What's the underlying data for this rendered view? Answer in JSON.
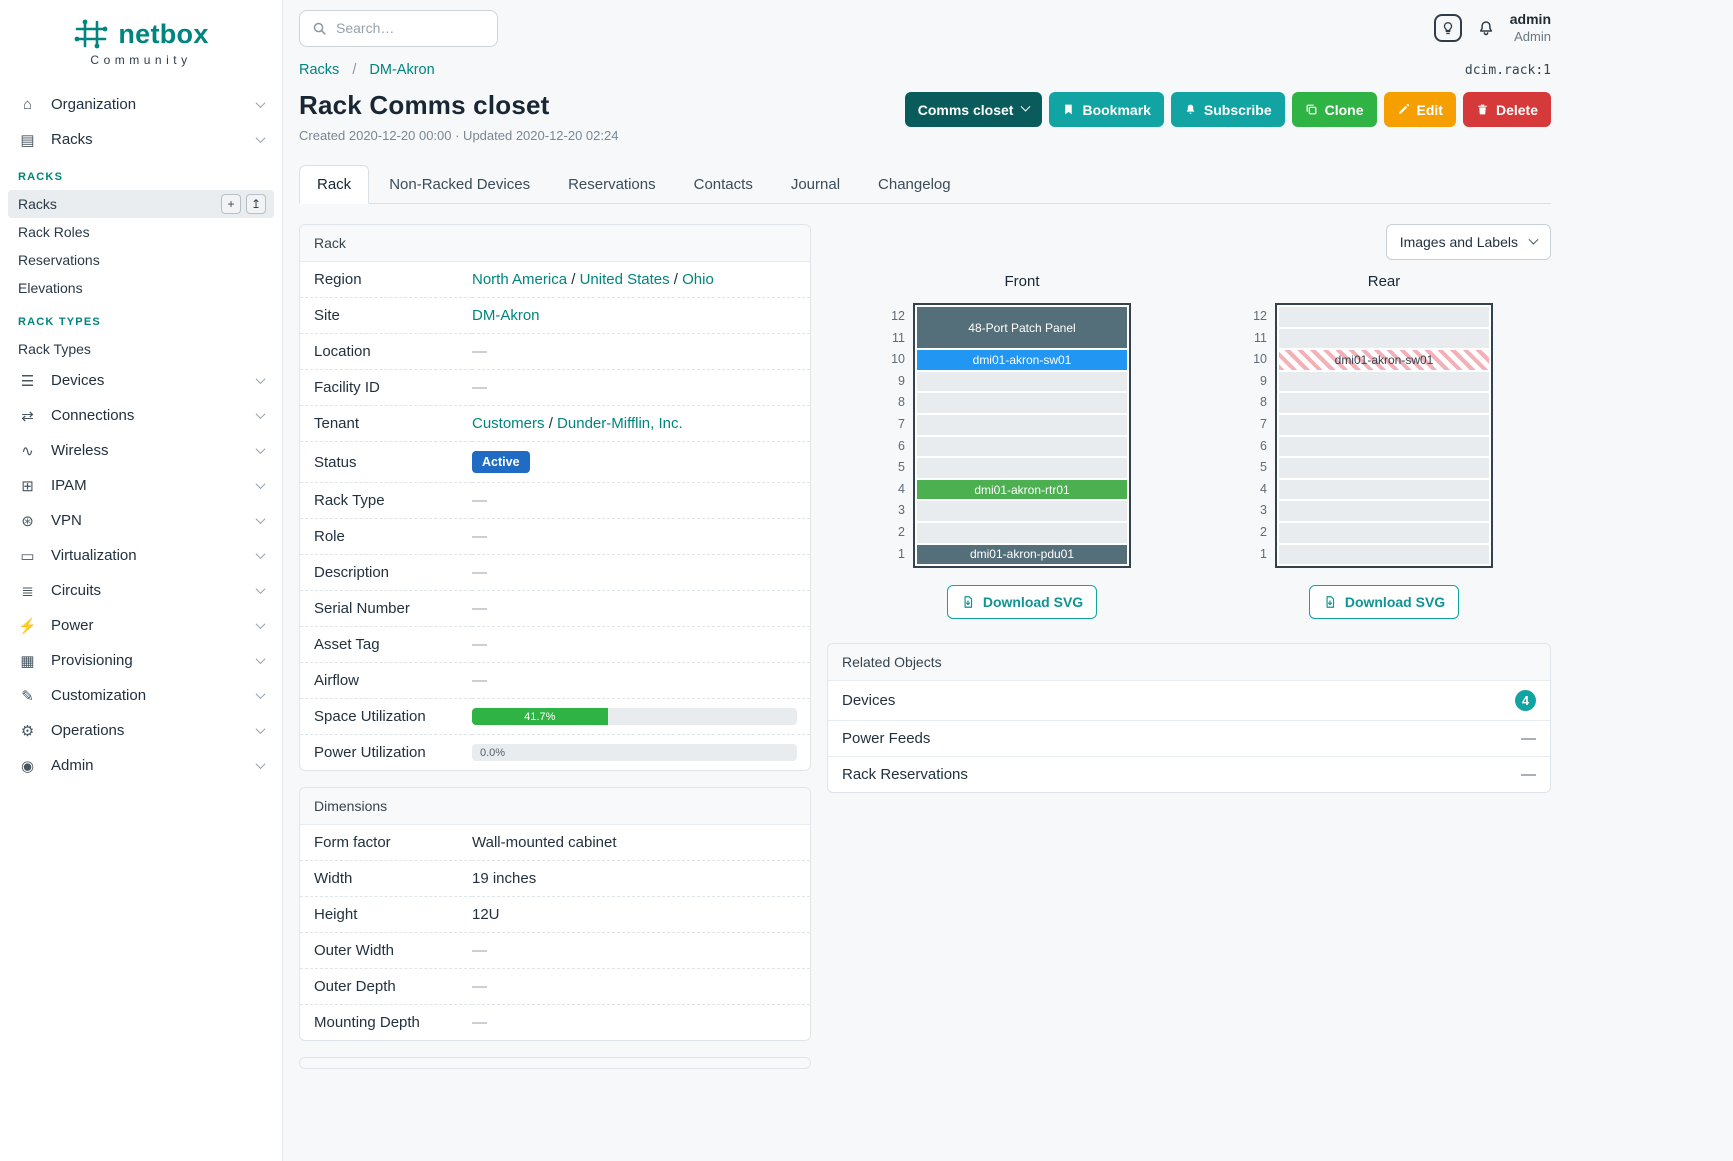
{
  "colors": {
    "brand_teal": "#00857e",
    "button_teal": "#12a3a3",
    "context_teal": "#0a5c5c",
    "clone_green": "#2fb344",
    "edit_orange": "#f59f00",
    "delete_red": "#d63939",
    "status_blue": "#206bc4",
    "progress_green": "#2fb344",
    "device_blue": "#2196f3",
    "device_green": "#4caf50",
    "device_slate": "#546e7a",
    "ghost_stripe_red": "#f3b0b6"
  },
  "icons": {
    "building-icon": "⌂",
    "rack-icon": "▤",
    "devices-icon": "☰",
    "connections-icon": "⇄",
    "wireless-icon": "∿",
    "ipam-icon": "⊞",
    "vpn-icon": "⊛",
    "virtualization-icon": "▭",
    "circuits-icon": "≣",
    "power-icon": "⚡",
    "provisioning-icon": "▦",
    "customization-icon": "✎",
    "operations-icon": "⚙",
    "admin-icon": "◉",
    "add-icon": "+",
    "import-icon": "↥"
  },
  "sidebar": {
    "brand": "netbox",
    "brand_sub": "Community",
    "items_top": [
      {
        "label": "Organization",
        "icon": "building-icon"
      },
      {
        "label": "Racks",
        "icon": "rack-icon",
        "expanded": true
      }
    ],
    "racks_submenu": {
      "section1": "RACKS",
      "section1_items": [
        {
          "label": "Racks",
          "active": true
        },
        {
          "label": "Rack Roles"
        },
        {
          "label": "Reservations"
        },
        {
          "label": "Elevations"
        }
      ],
      "section2": "RACK TYPES",
      "section2_items": [
        {
          "label": "Rack Types"
        }
      ]
    },
    "items_bottom": [
      {
        "label": "Devices",
        "icon": "devices-icon"
      },
      {
        "label": "Connections",
        "icon": "connections-icon"
      },
      {
        "label": "Wireless",
        "icon": "wireless-icon"
      },
      {
        "label": "IPAM",
        "icon": "ipam-icon"
      },
      {
        "label": "VPN",
        "icon": "vpn-icon"
      },
      {
        "label": "Virtualization",
        "icon": "virtualization-icon"
      },
      {
        "label": "Circuits",
        "icon": "circuits-icon"
      },
      {
        "label": "Power",
        "icon": "power-icon"
      },
      {
        "label": "Provisioning",
        "icon": "provisioning-icon"
      },
      {
        "label": "Customization",
        "icon": "customization-icon"
      },
      {
        "label": "Operations",
        "icon": "operations-icon"
      },
      {
        "label": "Admin",
        "icon": "admin-icon"
      }
    ]
  },
  "topbar": {
    "search_placeholder": "Search…",
    "user_name": "admin",
    "user_role": "Admin"
  },
  "page": {
    "breadcrumb": [
      "Racks",
      "DM-Akron"
    ],
    "breadcrumb_sep": "/",
    "object_ref": "dcim.rack:1",
    "title": "Rack Comms closet",
    "meta": "Created 2020-12-20 00:00 · Updated 2020-12-20 02:24",
    "actions": {
      "context": "Comms closet",
      "bookmark": "Bookmark",
      "subscribe": "Subscribe",
      "clone": "Clone",
      "edit": "Edit",
      "delete": "Delete"
    },
    "tabs": [
      {
        "label": "Rack",
        "active": true
      },
      {
        "label": "Non-Racked Devices"
      },
      {
        "label": "Reservations"
      },
      {
        "label": "Contacts"
      },
      {
        "label": "Journal"
      },
      {
        "label": "Changelog"
      }
    ]
  },
  "rack_card": {
    "title": "Rack",
    "links_separator": " / ",
    "rows": [
      {
        "label": "Region",
        "kind": "links",
        "links": [
          "North America",
          "United States",
          "Ohio"
        ]
      },
      {
        "label": "Site",
        "kind": "links",
        "links": [
          "DM-Akron"
        ]
      },
      {
        "label": "Location",
        "kind": "dash",
        "value": "—"
      },
      {
        "label": "Facility ID",
        "kind": "dash",
        "value": "—"
      },
      {
        "label": "Tenant",
        "kind": "links",
        "links": [
          "Customers",
          "Dunder-Mifflin, Inc."
        ]
      },
      {
        "label": "Status",
        "kind": "badge",
        "value": "Active"
      },
      {
        "label": "Rack Type",
        "kind": "dash",
        "value": "—"
      },
      {
        "label": "Role",
        "kind": "dash",
        "value": "—"
      },
      {
        "label": "Description",
        "kind": "dash",
        "value": "—"
      },
      {
        "label": "Serial Number",
        "kind": "dash",
        "value": "—"
      },
      {
        "label": "Asset Tag",
        "kind": "dash",
        "value": "—"
      },
      {
        "label": "Airflow",
        "kind": "dash",
        "value": "—"
      },
      {
        "label": "Space Utilization",
        "kind": "progress",
        "value": 41.7,
        "value_label": "41.7%"
      },
      {
        "label": "Power Utilization",
        "kind": "progress",
        "value": 0,
        "value_label": "0.0%"
      }
    ]
  },
  "dimensions_card": {
    "title": "Dimensions",
    "rows": [
      {
        "label": "Form factor",
        "kind": "text",
        "value": "Wall-mounted cabinet"
      },
      {
        "label": "Width",
        "kind": "text",
        "value": "19 inches"
      },
      {
        "label": "Height",
        "kind": "text",
        "value": "12U"
      },
      {
        "label": "Outer Width",
        "kind": "dash",
        "value": "—"
      },
      {
        "label": "Outer Depth",
        "kind": "dash",
        "value": "—"
      },
      {
        "label": "Mounting Depth",
        "kind": "dash",
        "value": "—"
      }
    ]
  },
  "elevations": {
    "toggle_label": "Images and Labels",
    "download_label": "Download SVG",
    "unit_count": 12,
    "front": {
      "title": "Front",
      "units": [
        {
          "u": 12,
          "span": 2,
          "label": "48-Port Patch Panel",
          "style": "dark"
        },
        {
          "u": 10,
          "label": "dmi01-akron-sw01",
          "style": "blue"
        },
        {
          "u": 9,
          "style": "empty"
        },
        {
          "u": 8,
          "style": "empty"
        },
        {
          "u": 7,
          "style": "empty"
        },
        {
          "u": 6,
          "style": "empty"
        },
        {
          "u": 5,
          "style": "empty"
        },
        {
          "u": 4,
          "label": "dmi01-akron-rtr01",
          "style": "green"
        },
        {
          "u": 3,
          "style": "empty"
        },
        {
          "u": 2,
          "style": "empty"
        },
        {
          "u": 1,
          "label": "dmi01-akron-pdu01",
          "style": "dark"
        }
      ]
    },
    "rear": {
      "title": "Rear",
      "units": [
        {
          "u": 12,
          "style": "empty"
        },
        {
          "u": 11,
          "style": "empty"
        },
        {
          "u": 10,
          "label": "dmi01-akron-sw01",
          "style": "ghost"
        },
        {
          "u": 9,
          "style": "empty"
        },
        {
          "u": 8,
          "style": "empty"
        },
        {
          "u": 7,
          "style": "empty"
        },
        {
          "u": 6,
          "style": "empty"
        },
        {
          "u": 5,
          "style": "empty"
        },
        {
          "u": 4,
          "style": "empty"
        },
        {
          "u": 3,
          "style": "empty"
        },
        {
          "u": 2,
          "style": "empty"
        },
        {
          "u": 1,
          "style": "empty"
        }
      ]
    }
  },
  "related_card": {
    "title": "Related Objects",
    "rows": [
      {
        "label": "Devices",
        "kind": "badge",
        "value": "4"
      },
      {
        "label": "Power Feeds",
        "kind": "dash",
        "value": "—"
      },
      {
        "label": "Rack Reservations",
        "kind": "dash",
        "value": "—"
      }
    ]
  }
}
